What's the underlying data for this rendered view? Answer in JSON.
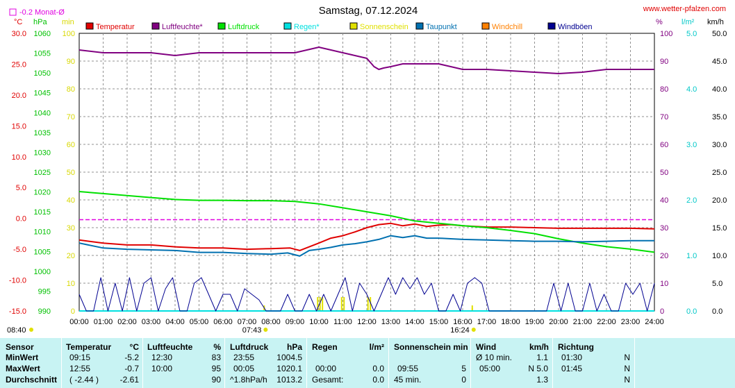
{
  "header": {
    "title": "Samstag, 07.12.2024",
    "site": "www.wetter-pfalzen.com",
    "monat_label": "-0.2 Monat-Ø"
  },
  "colors": {
    "temperature": "#e00000",
    "humidity": "#800080",
    "pressure": "#00e000",
    "rain": "#00e0e0",
    "sunshine": "#e0e000",
    "dewpoint": "#0070b0",
    "windchill": "#ff8000",
    "gusts": "#000090",
    "temp_axis": "#e00000",
    "pressure_axis": "#00c000",
    "sun_axis": "#d8d800",
    "hum_axis": "#800080",
    "rain_axis": "#00c8c8",
    "wind_axis": "#000000",
    "monthly_mean": "#e000e0"
  },
  "chart_data": {
    "type": "line",
    "x_unit": "hours",
    "x_range": [
      0,
      24
    ],
    "x_ticks": [
      "00:00",
      "01:00",
      "02:00",
      "03:00",
      "04:00",
      "05:00",
      "06:00",
      "07:00",
      "08:00",
      "09:00",
      "10:00",
      "11:00",
      "12:00",
      "13:00",
      "14:00",
      "15:00",
      "16:00",
      "17:00",
      "18:00",
      "19:00",
      "20:00",
      "21:00",
      "22:00",
      "23:00",
      "24:00"
    ],
    "grid": true,
    "legend_position": "top",
    "axes": {
      "temperature": {
        "unit": "°C",
        "range": [
          -15,
          30
        ],
        "ticks": [
          "30.0",
          "25.0",
          "20.0",
          "15.0",
          "10.0",
          "5.0",
          "0.0",
          "-5.0",
          "-10.0",
          "-15.0"
        ]
      },
      "pressure": {
        "unit": "hPa",
        "range": [
          990,
          1060
        ],
        "ticks": [
          "1060",
          "1055",
          "1050",
          "1045",
          "1040",
          "1035",
          "1030",
          "1025",
          "1020",
          "1015",
          "1010",
          "1005",
          "1000",
          "995",
          "990"
        ]
      },
      "sunshine": {
        "unit": "min",
        "range": [
          0,
          100
        ],
        "ticks": [
          "100",
          "90",
          "80",
          "70",
          "60",
          "50",
          "40",
          "30",
          "20",
          "10",
          "0"
        ]
      },
      "humidity": {
        "unit": "%",
        "range": [
          0,
          100
        ],
        "ticks": [
          "100",
          "90",
          "80",
          "70",
          "60",
          "50",
          "40",
          "30",
          "20",
          "10",
          "0"
        ]
      },
      "rain": {
        "unit": "l/m²",
        "range": [
          0,
          5
        ],
        "ticks": [
          "5.0",
          "4.0",
          "3.0",
          "2.0",
          "1.0",
          "0.0"
        ]
      },
      "wind": {
        "unit": "km/h",
        "range": [
          0,
          50
        ],
        "ticks": [
          "50.0",
          "45.0",
          "40.0",
          "35.0",
          "30.0",
          "25.0",
          "20.0",
          "15.0",
          "10.0",
          "5.0",
          "0.0"
        ]
      }
    },
    "monthly_mean_temperature": -0.2,
    "sunrise": "07:43",
    "sunset": "16:24",
    "sunrise_hour": 7.72,
    "sunset_hour": 16.4,
    "left_time_label": "08:40",
    "series": [
      {
        "name": "Temperatur",
        "axis": "temperature",
        "color": "#e00000",
        "x": [
          0,
          1,
          2,
          3,
          4,
          5,
          6,
          7,
          8,
          8.8,
          9.2,
          10,
          10.5,
          11,
          11.5,
          12,
          12.5,
          13,
          13.5,
          14,
          14.5,
          15,
          15.5,
          16,
          17,
          18,
          19,
          20,
          21,
          22,
          23,
          24
        ],
        "y": [
          -3.5,
          -4.0,
          -4.3,
          -4.3,
          -4.6,
          -4.8,
          -4.8,
          -5.0,
          -4.9,
          -4.8,
          -5.2,
          -4.0,
          -3.2,
          -2.8,
          -2.2,
          -1.5,
          -1.0,
          -0.8,
          -1.2,
          -0.9,
          -1.3,
          -1.1,
          -1.0,
          -1.2,
          -1.4,
          -1.4,
          -1.5,
          -1.6,
          -1.6,
          -1.6,
          -1.6,
          -1.7
        ]
      },
      {
        "name": "Luftfeuchte*",
        "axis": "humidity",
        "color": "#800080",
        "x": [
          0,
          1,
          2,
          3,
          4,
          5,
          6,
          7,
          8,
          9,
          10,
          10.5,
          11,
          11.5,
          12,
          12.3,
          12.5,
          12.7,
          13,
          13.5,
          14,
          14.5,
          15,
          15.5,
          16,
          17,
          18,
          19,
          20,
          21,
          22,
          23,
          24
        ],
        "y": [
          94,
          93,
          93,
          93,
          92,
          93,
          93,
          93,
          93,
          93,
          95,
          94,
          93,
          92,
          91,
          88,
          87,
          87.5,
          88,
          89,
          89,
          89,
          89,
          88,
          87,
          87,
          86.5,
          86,
          85.5,
          86,
          87,
          87,
          87
        ]
      },
      {
        "name": "Luftdruck",
        "axis": "pressure",
        "color": "#00e000",
        "x": [
          0,
          1,
          2,
          3,
          4,
          5,
          6,
          7,
          8,
          9,
          10,
          11,
          12,
          13,
          14,
          15,
          16,
          17,
          18,
          19,
          20,
          21,
          22,
          23,
          24
        ],
        "y": [
          1020.1,
          1019.6,
          1019.1,
          1018.6,
          1018.1,
          1017.9,
          1017.9,
          1017.8,
          1017.8,
          1017.6,
          1017.0,
          1016.0,
          1015.0,
          1014.0,
          1012.7,
          1012.1,
          1011.5,
          1011.0,
          1010.3,
          1009.5,
          1008.2,
          1007.1,
          1006.2,
          1005.6,
          1004.8
        ]
      },
      {
        "name": "Regen*",
        "axis": "rain",
        "color": "#00e0e0",
        "x": [
          0,
          24
        ],
        "y": [
          0,
          0
        ]
      },
      {
        "name": "Sonnenschein",
        "axis": "sunshine",
        "color": "#e0e000",
        "x": [
          7.72,
          9.95,
          10.05,
          10.15,
          10.95,
          11.05,
          12.05,
          12.15,
          16.4
        ],
        "y": [
          2,
          5,
          5,
          5,
          5,
          5,
          5,
          5,
          2
        ]
      },
      {
        "name": "Taupunkt",
        "axis": "temperature",
        "color": "#0070b0",
        "x": [
          0,
          1,
          2,
          3,
          4,
          5,
          6,
          7,
          8,
          8.7,
          9.2,
          9.6,
          10,
          10.5,
          11,
          11.5,
          12,
          12.5,
          13,
          13.5,
          14,
          14.5,
          15,
          15.5,
          16,
          17,
          18,
          19,
          20,
          21,
          22,
          23,
          24
        ],
        "y": [
          -4.0,
          -4.8,
          -5.0,
          -5.1,
          -5.2,
          -5.5,
          -5.5,
          -5.7,
          -5.8,
          -5.6,
          -6.1,
          -5.2,
          -5.0,
          -4.7,
          -4.3,
          -4.1,
          -3.8,
          -3.4,
          -2.8,
          -3.1,
          -2.8,
          -3.2,
          -3.2,
          -3.3,
          -3.4,
          -3.5,
          -3.6,
          -3.7,
          -3.7,
          -3.8,
          -3.7,
          -3.6,
          -3.6
        ]
      },
      {
        "name": "Windchill",
        "axis": "temperature",
        "color": "#ff8000",
        "x": [],
        "y": []
      },
      {
        "name": "Windböen",
        "axis": "wind",
        "color": "#000090",
        "x": [
          0,
          0.3,
          0.6,
          0.9,
          1.2,
          1.5,
          1.8,
          2.1,
          2.4,
          2.7,
          3.0,
          3.3,
          3.6,
          3.9,
          4.2,
          4.5,
          4.8,
          5.1,
          5.4,
          5.7,
          6.0,
          6.3,
          6.6,
          6.9,
          7.2,
          7.5,
          7.8,
          8.1,
          8.4,
          8.7,
          9.0,
          9.3,
          9.6,
          9.9,
          10.2,
          10.5,
          10.8,
          11.1,
          11.4,
          11.7,
          12.0,
          12.3,
          12.6,
          12.9,
          13.2,
          13.5,
          13.8,
          14.1,
          14.4,
          14.7,
          15.0,
          15.3,
          15.6,
          15.9,
          16.2,
          16.5,
          16.8,
          17.1,
          17.4,
          17.7,
          18.0,
          18.3,
          18.6,
          18.9,
          19.2,
          19.5,
          19.8,
          20.1,
          20.4,
          20.7,
          21.0,
          21.3,
          21.6,
          21.9,
          22.2,
          22.5,
          22.8,
          23.1,
          23.4,
          23.7,
          24.0
        ],
        "y": [
          3,
          0,
          0,
          6,
          0,
          5,
          0,
          6,
          0,
          5,
          6,
          0,
          4,
          6,
          0,
          0,
          5,
          6,
          3,
          0,
          3,
          3,
          0,
          4,
          3,
          2,
          0,
          0,
          0,
          3,
          0,
          0,
          3,
          0,
          3,
          0,
          3,
          6,
          0,
          5,
          3,
          0,
          3,
          6,
          3,
          6,
          4,
          6,
          3,
          5,
          0,
          0,
          3,
          0,
          5,
          6,
          5,
          0,
          0,
          0,
          0,
          0,
          0,
          0,
          0,
          0,
          5,
          0,
          5,
          0,
          0,
          5,
          0,
          3,
          0,
          0,
          5,
          3,
          5,
          0,
          5
        ]
      }
    ]
  },
  "stats": {
    "headers": {
      "sensor": "Sensor",
      "temp": "Temperatur",
      "temp_unit": "°C",
      "hum": "Luftfeuchte",
      "hum_unit": "%",
      "press": "Luftdruck",
      "press_unit": "hPa",
      "rain": "Regen",
      "rain_unit": "l/m²",
      "sun": "Sonnenschein min",
      "wind": "Wind",
      "wind_unit": "km/h",
      "dir": "Richtung"
    },
    "rows": [
      {
        "label": "MinWert",
        "temp_time": "09:15",
        "temp_val": "-5.2",
        "hum_time": "12:30",
        "hum_val": "83",
        "press_time": "23:55",
        "press_val": "1004.5",
        "rain_time": "",
        "rain_val": "",
        "sun_time": "",
        "sun_val": "",
        "wind_time": "Ø 10 min.",
        "wind_val": "1.1",
        "dir_time": "01:30",
        "dir_val": "N"
      },
      {
        "label": "MaxWert",
        "temp_time": "12:55",
        "temp_val": "-0.7",
        "hum_time": "10:00",
        "hum_val": "95",
        "press_time": "00:05",
        "press_val": "1020.1",
        "rain_time": "00:00",
        "rain_val": "0.0",
        "sun_time": "09:55",
        "sun_val": "5",
        "wind_time": "05:00",
        "wind_val": "N 5.0",
        "dir_time": "01:45",
        "dir_val": "N"
      },
      {
        "label": "Durchschnitt",
        "temp_time": "( -2.44 )",
        "temp_val": "-2.61",
        "hum_time": "",
        "hum_val": "90",
        "press_time": "^1.8hPa/h",
        "press_val": "1013.2",
        "rain_time": "Gesamt:",
        "rain_val": "0.0",
        "sun_time": "45 min.",
        "sun_val": "0",
        "wind_time": "",
        "wind_val": "1.3",
        "dir_time": "",
        "dir_val": "N"
      }
    ]
  }
}
